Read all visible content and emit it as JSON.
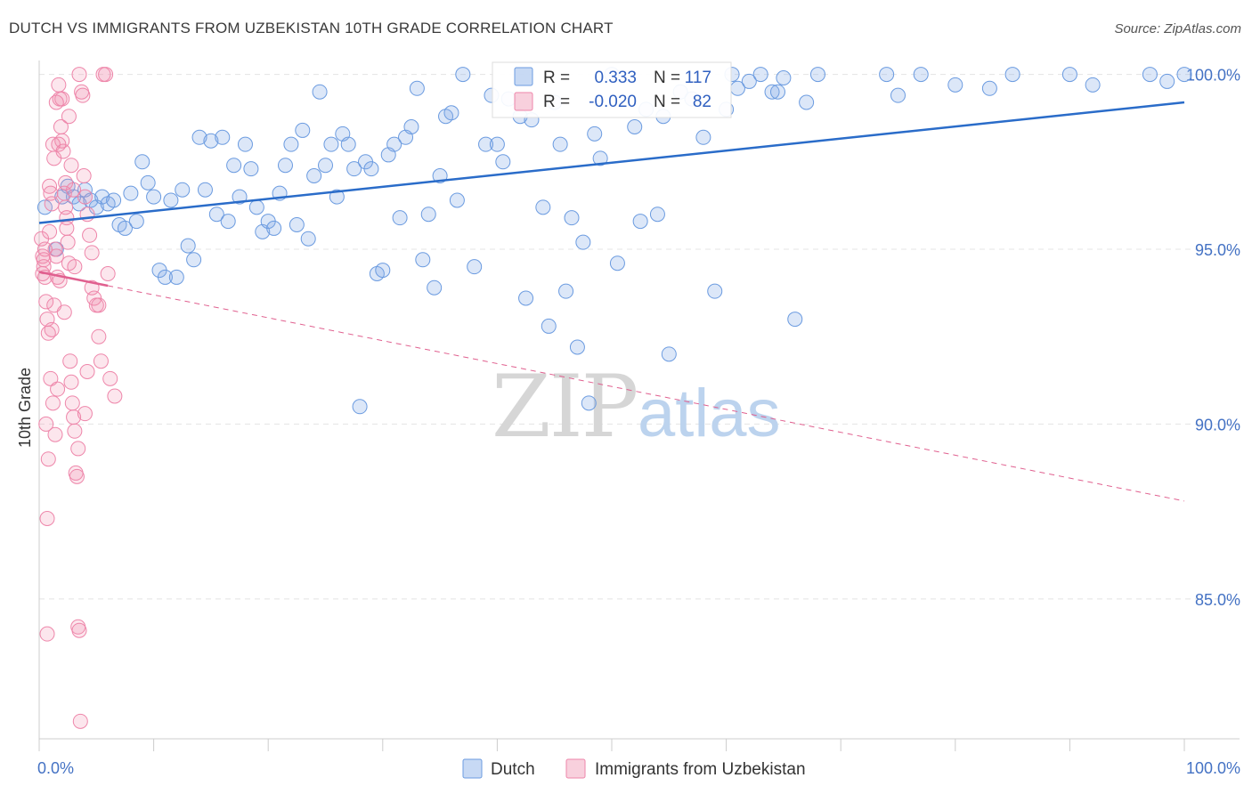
{
  "title": "DUTCH VS IMMIGRANTS FROM UZBEKISTAN 10TH GRADE CORRELATION CHART",
  "source": "Source: ZipAtlas.com",
  "watermark": {
    "zip": "ZIP",
    "atlas": "atlas"
  },
  "colors": {
    "dutch": "#6b9be0",
    "dutch_fill": "rgba(130,170,230,0.28)",
    "dutch_line": "#2a6cc9",
    "uzbek": "#ee86aa",
    "uzbek_fill": "rgba(240,140,175,0.22)",
    "uzbek_line": "#e0608f",
    "grid": "#e4e4e4",
    "axis_text": "#4472c4"
  },
  "chart_data": {
    "type": "scatter",
    "xlabel": "",
    "ylabel": "10th Grade",
    "xlim": [
      0,
      100
    ],
    "ylim": [
      81.0,
      100.6
    ],
    "x_tick_labels": [
      "0.0%",
      "100.0%"
    ],
    "y_ticks": [
      85,
      90,
      95,
      100
    ],
    "y_tick_labels": [
      "85.0%",
      "90.0%",
      "95.0%",
      "100.0%"
    ],
    "legend_position": "bottom",
    "stats": [
      {
        "r_label": "R =",
        "r_value": "0.333",
        "n_label": "N =",
        "n_value": "117"
      },
      {
        "r_label": "R =",
        "r_value": "-0.020",
        "n_label": "N =",
        "n_value": "82"
      }
    ],
    "series": [
      {
        "name": "Dutch",
        "trend": {
          "x0": 0,
          "y0": 95.75,
          "x1": 100,
          "y1": 99.2,
          "dashed": false
        },
        "points": [
          [
            0.5,
            96.2
          ],
          [
            1.5,
            95.0
          ],
          [
            2.0,
            96.5
          ],
          [
            2.5,
            96.8
          ],
          [
            3.0,
            96.5
          ],
          [
            3.5,
            96.3
          ],
          [
            4.0,
            96.7
          ],
          [
            4.5,
            96.4
          ],
          [
            5.0,
            96.2
          ],
          [
            5.5,
            96.5
          ],
          [
            6.0,
            96.3
          ],
          [
            6.5,
            96.4
          ],
          [
            7.0,
            95.7
          ],
          [
            7.5,
            95.6
          ],
          [
            8.0,
            96.6
          ],
          [
            8.5,
            95.8
          ],
          [
            9.0,
            97.5
          ],
          [
            9.5,
            96.9
          ],
          [
            10.0,
            96.5
          ],
          [
            10.5,
            94.4
          ],
          [
            11.0,
            94.2
          ],
          [
            11.5,
            96.4
          ],
          [
            12.0,
            94.2
          ],
          [
            12.5,
            96.7
          ],
          [
            13.0,
            95.1
          ],
          [
            13.5,
            94.7
          ],
          [
            14.0,
            98.2
          ],
          [
            14.5,
            96.7
          ],
          [
            15.0,
            98.1
          ],
          [
            15.5,
            96.0
          ],
          [
            16.0,
            98.2
          ],
          [
            16.5,
            95.8
          ],
          [
            17.0,
            97.4
          ],
          [
            17.5,
            96.5
          ],
          [
            18.0,
            98.0
          ],
          [
            18.5,
            97.3
          ],
          [
            19.0,
            96.2
          ],
          [
            19.5,
            95.5
          ],
          [
            20.0,
            95.8
          ],
          [
            20.5,
            95.6
          ],
          [
            21.0,
            96.6
          ],
          [
            21.5,
            97.4
          ],
          [
            22.0,
            98.0
          ],
          [
            22.5,
            95.7
          ],
          [
            23.0,
            98.4
          ],
          [
            23.5,
            95.3
          ],
          [
            24.0,
            97.1
          ],
          [
            24.5,
            99.5
          ],
          [
            25.0,
            97.4
          ],
          [
            25.5,
            98.0
          ],
          [
            26.0,
            96.5
          ],
          [
            26.5,
            98.3
          ],
          [
            27.0,
            98.0
          ],
          [
            27.5,
            97.3
          ],
          [
            28.0,
            90.5
          ],
          [
            28.5,
            97.5
          ],
          [
            29.0,
            97.3
          ],
          [
            29.5,
            94.3
          ],
          [
            30.0,
            94.4
          ],
          [
            30.5,
            97.7
          ],
          [
            31.0,
            98.0
          ],
          [
            31.5,
            95.9
          ],
          [
            32.0,
            98.2
          ],
          [
            32.5,
            98.5
          ],
          [
            33.0,
            99.6
          ],
          [
            33.5,
            94.7
          ],
          [
            34.0,
            96.0
          ],
          [
            34.5,
            93.9
          ],
          [
            35.0,
            97.1
          ],
          [
            35.5,
            98.8
          ],
          [
            36.0,
            98.9
          ],
          [
            36.5,
            96.4
          ],
          [
            37.0,
            100.0
          ],
          [
            38.0,
            94.5
          ],
          [
            39.0,
            98.0
          ],
          [
            39.5,
            99.4
          ],
          [
            40.0,
            98.0
          ],
          [
            40.5,
            97.5
          ],
          [
            41.0,
            99.3
          ],
          [
            42.0,
            98.8
          ],
          [
            42.5,
            93.6
          ],
          [
            43.0,
            98.7
          ],
          [
            44.0,
            96.2
          ],
          [
            44.5,
            92.8
          ],
          [
            45.0,
            99.2
          ],
          [
            45.5,
            98.0
          ],
          [
            46.0,
            93.8
          ],
          [
            46.5,
            95.9
          ],
          [
            47.0,
            92.2
          ],
          [
            47.5,
            95.2
          ],
          [
            48.0,
            90.6
          ],
          [
            48.5,
            98.3
          ],
          [
            49.0,
            97.6
          ],
          [
            50.0,
            100.0
          ],
          [
            50.5,
            94.6
          ],
          [
            52.0,
            98.5
          ],
          [
            52.5,
            95.8
          ],
          [
            53.0,
            99.0
          ],
          [
            54.0,
            96.0
          ],
          [
            54.5,
            98.8
          ],
          [
            55.0,
            92.0
          ],
          [
            56.0,
            99.5
          ],
          [
            57.0,
            99.3
          ],
          [
            58.0,
            98.2
          ],
          [
            59.0,
            93.8
          ],
          [
            60.0,
            99.0
          ],
          [
            61.0,
            99.6
          ],
          [
            62.0,
            99.8
          ],
          [
            63.0,
            100.0
          ],
          [
            64.0,
            99.5
          ],
          [
            65.0,
            99.9
          ],
          [
            66.0,
            93.0
          ],
          [
            67.0,
            99.2
          ],
          [
            68.0,
            100.0
          ],
          [
            74.0,
            100.0
          ],
          [
            75.0,
            99.4
          ],
          [
            77.0,
            100.0
          ],
          [
            80.0,
            99.7
          ],
          [
            83.0,
            99.6
          ],
          [
            90.0,
            100.0
          ],
          [
            97.0,
            100.0
          ],
          [
            98.5,
            99.8
          ],
          [
            100.0,
            100.0
          ],
          [
            60.5,
            100.0
          ],
          [
            64.5,
            99.5
          ],
          [
            85.0,
            100.0
          ],
          [
            92.0,
            99.7
          ]
        ]
      },
      {
        "name": "Immigrants from Uzbekistan",
        "trend": {
          "x0": 0,
          "y0": 94.35,
          "x1": 100,
          "y1": 87.8,
          "dashed": true,
          "solid_until": 6.0
        },
        "points": [
          [
            0.2,
            95.3
          ],
          [
            0.3,
            94.8
          ],
          [
            0.4,
            94.5
          ],
          [
            0.5,
            94.2
          ],
          [
            0.6,
            93.5
          ],
          [
            0.7,
            93.0
          ],
          [
            0.8,
            92.6
          ],
          [
            0.9,
            96.8
          ],
          [
            1.0,
            96.6
          ],
          [
            1.1,
            96.3
          ],
          [
            1.2,
            98.0
          ],
          [
            1.3,
            97.6
          ],
          [
            1.4,
            95.0
          ],
          [
            1.5,
            94.8
          ],
          [
            1.6,
            94.2
          ],
          [
            1.7,
            99.7
          ],
          [
            1.8,
            99.3
          ],
          [
            1.9,
            98.5
          ],
          [
            2.0,
            98.1
          ],
          [
            2.1,
            97.8
          ],
          [
            2.2,
            96.6
          ],
          [
            2.3,
            96.2
          ],
          [
            2.4,
            95.6
          ],
          [
            2.5,
            95.2
          ],
          [
            2.6,
            94.6
          ],
          [
            2.7,
            91.8
          ],
          [
            2.8,
            91.2
          ],
          [
            2.9,
            90.6
          ],
          [
            3.0,
            90.2
          ],
          [
            3.1,
            89.8
          ],
          [
            3.2,
            88.6
          ],
          [
            3.3,
            88.5
          ],
          [
            3.4,
            84.2
          ],
          [
            3.5,
            84.1
          ],
          [
            3.6,
            81.5
          ],
          [
            3.7,
            99.5
          ],
          [
            3.8,
            99.4
          ],
          [
            3.9,
            97.1
          ],
          [
            4.0,
            96.5
          ],
          [
            4.2,
            96.0
          ],
          [
            4.4,
            95.4
          ],
          [
            4.6,
            94.9
          ],
          [
            4.8,
            93.6
          ],
          [
            5.0,
            93.4
          ],
          [
            5.2,
            92.5
          ],
          [
            5.4,
            91.8
          ],
          [
            5.6,
            100.0
          ],
          [
            5.8,
            100.0
          ],
          [
            6.0,
            94.3
          ],
          [
            4.2,
            91.5
          ],
          [
            4.0,
            90.3
          ],
          [
            0.6,
            90.0
          ],
          [
            0.8,
            89.0
          ],
          [
            0.7,
            87.3
          ],
          [
            0.7,
            84.0
          ],
          [
            1.0,
            91.3
          ],
          [
            1.2,
            90.6
          ],
          [
            1.4,
            89.7
          ],
          [
            1.1,
            92.7
          ],
          [
            1.3,
            93.4
          ],
          [
            2.2,
            93.2
          ],
          [
            2.4,
            95.9
          ],
          [
            3.5,
            100.0
          ],
          [
            2.0,
            99.3
          ],
          [
            2.6,
            98.8
          ],
          [
            1.5,
            99.2
          ],
          [
            0.9,
            95.5
          ],
          [
            0.5,
            95.0
          ],
          [
            0.4,
            94.7
          ],
          [
            0.3,
            94.3
          ],
          [
            1.8,
            94.1
          ],
          [
            2.3,
            96.9
          ],
          [
            3.1,
            94.5
          ],
          [
            4.6,
            93.9
          ],
          [
            5.2,
            93.4
          ],
          [
            6.2,
            91.3
          ],
          [
            6.6,
            90.8
          ],
          [
            3.4,
            89.3
          ],
          [
            1.7,
            98.0
          ],
          [
            2.8,
            97.4
          ],
          [
            3.0,
            96.7
          ],
          [
            1.6,
            91.0
          ]
        ]
      }
    ]
  },
  "legend": [
    {
      "label": "Dutch"
    },
    {
      "label": "Immigrants from Uzbekistan"
    }
  ]
}
